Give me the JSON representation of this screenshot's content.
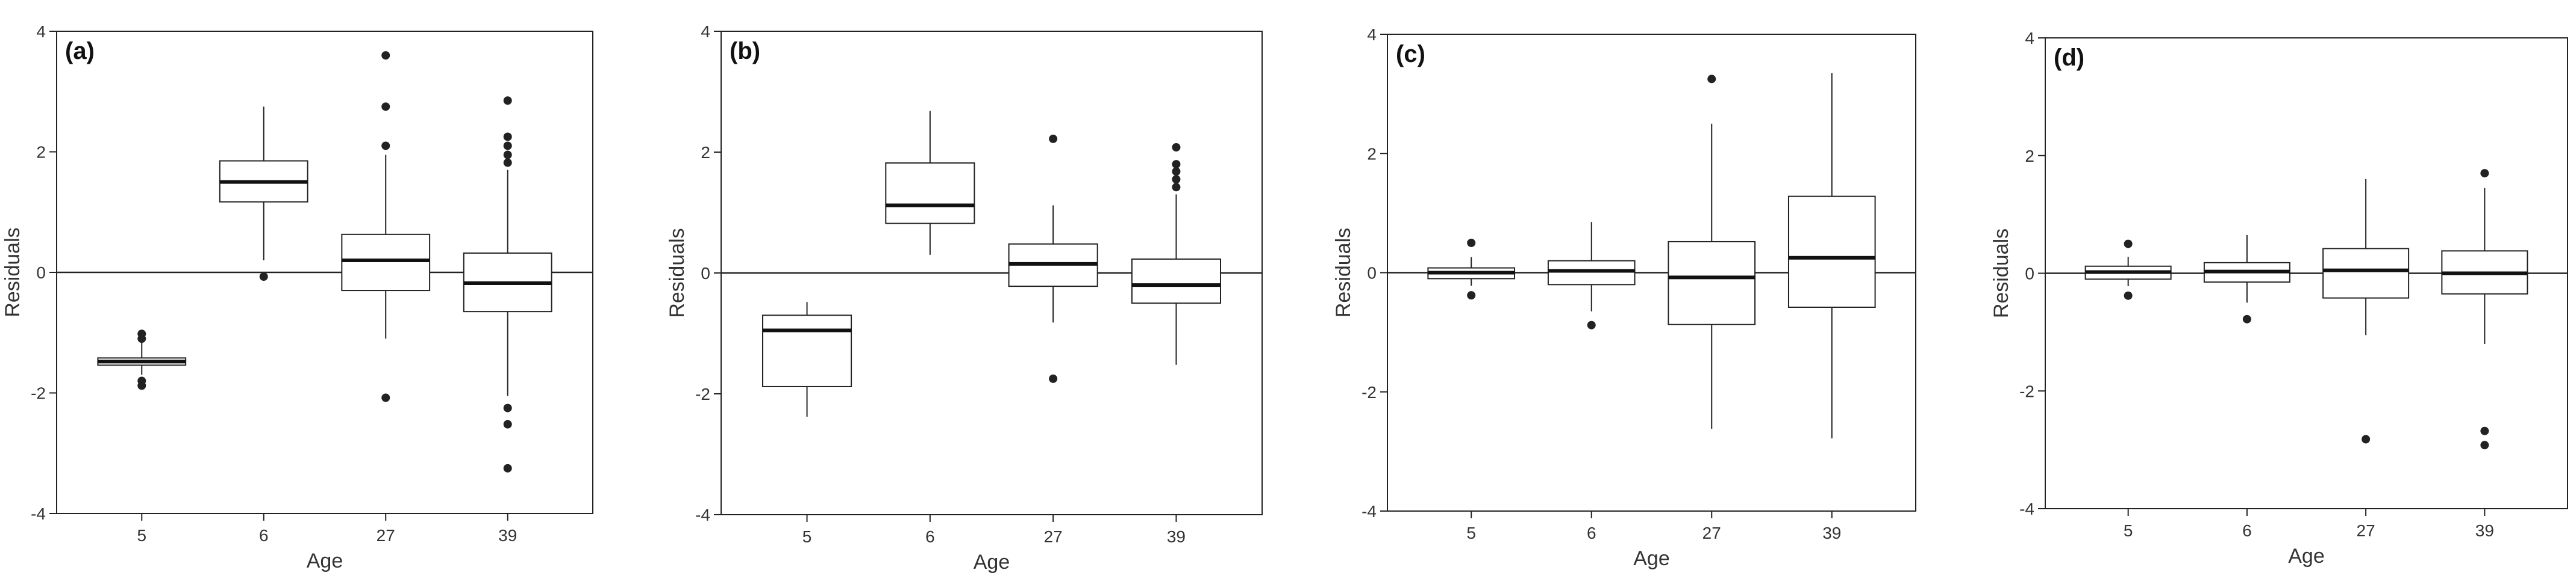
{
  "figure": {
    "background": "#ffffff",
    "box_color": "#222222",
    "median_color": "#111111",
    "outlier_color": "#222222"
  },
  "chart_data": [
    {
      "type": "boxplot",
      "panel_label": "(a)",
      "xlabel": "Age",
      "ylabel": "Residuals",
      "categories": [
        "5",
        "6",
        "27",
        "39"
      ],
      "ylim": [
        -4,
        4
      ],
      "yticks": [
        -4,
        -2,
        0,
        2,
        4
      ],
      "reference_line": 0,
      "boxes": [
        {
          "q1": -1.54,
          "median": -1.48,
          "q3": -1.42,
          "whisker_low": -1.7,
          "whisker_high": -1.12,
          "outliers": [
            -1.02,
            -1.1,
            -1.8,
            -1.88
          ]
        },
        {
          "q1": 1.17,
          "median": 1.5,
          "q3": 1.85,
          "whisker_low": 0.2,
          "whisker_high": 2.75,
          "outliers": [
            -0.07
          ]
        },
        {
          "q1": -0.3,
          "median": 0.2,
          "q3": 0.63,
          "whisker_low": -1.1,
          "whisker_high": 1.95,
          "outliers": [
            2.1,
            2.75,
            3.6,
            -2.08
          ]
        },
        {
          "q1": -0.65,
          "median": -0.18,
          "q3": 0.32,
          "whisker_low": -2.05,
          "whisker_high": 1.7,
          "outliers": [
            1.82,
            1.95,
            2.1,
            2.25,
            2.85,
            -2.25,
            -2.52,
            -3.25
          ]
        }
      ]
    },
    {
      "type": "boxplot",
      "panel_label": "(b)",
      "xlabel": "Age",
      "ylabel": "Residuals",
      "categories": [
        "5",
        "6",
        "27",
        "39"
      ],
      "ylim": [
        -4,
        4
      ],
      "yticks": [
        -4,
        -2,
        0,
        2,
        4
      ],
      "reference_line": 0,
      "boxes": [
        {
          "q1": -1.88,
          "median": -0.95,
          "q3": -0.7,
          "whisker_low": -2.38,
          "whisker_high": -0.48,
          "outliers": []
        },
        {
          "q1": 0.82,
          "median": 1.12,
          "q3": 1.82,
          "whisker_low": 0.3,
          "whisker_high": 2.68,
          "outliers": []
        },
        {
          "q1": -0.22,
          "median": 0.15,
          "q3": 0.48,
          "whisker_low": -0.82,
          "whisker_high": 1.12,
          "outliers": [
            2.22,
            -1.75
          ]
        },
        {
          "q1": -0.5,
          "median": -0.2,
          "q3": 0.23,
          "whisker_low": -1.52,
          "whisker_high": 1.3,
          "outliers": [
            1.42,
            1.55,
            1.68,
            1.8,
            2.08
          ]
        }
      ]
    },
    {
      "type": "boxplot",
      "panel_label": "(c)",
      "xlabel": "Age",
      "ylabel": "Residuals",
      "categories": [
        "5",
        "6",
        "27",
        "39"
      ],
      "ylim": [
        -4,
        4
      ],
      "yticks": [
        -4,
        -2,
        0,
        2,
        4
      ],
      "reference_line": 0,
      "boxes": [
        {
          "q1": -0.1,
          "median": 0,
          "q3": 0.08,
          "whisker_low": -0.22,
          "whisker_high": 0.26,
          "outliers": [
            0.5,
            -0.38
          ]
        },
        {
          "q1": -0.2,
          "median": 0.03,
          "q3": 0.2,
          "whisker_low": -0.65,
          "whisker_high": 0.85,
          "outliers": [
            -0.88
          ]
        },
        {
          "q1": -0.87,
          "median": -0.08,
          "q3": 0.52,
          "whisker_low": -2.62,
          "whisker_high": 2.5,
          "outliers": [
            3.25
          ]
        },
        {
          "q1": -0.58,
          "median": 0.25,
          "q3": 1.28,
          "whisker_low": -2.78,
          "whisker_high": 3.35,
          "outliers": []
        }
      ]
    },
    {
      "type": "boxplot",
      "panel_label": "(d)",
      "xlabel": "Age",
      "ylabel": "Residuals",
      "categories": [
        "5",
        "6",
        "27",
        "39"
      ],
      "ylim": [
        -4,
        4
      ],
      "yticks": [
        -4,
        -2,
        0,
        2,
        4
      ],
      "reference_line": 0,
      "boxes": [
        {
          "q1": -0.1,
          "median": 0.02,
          "q3": 0.12,
          "whisker_low": -0.22,
          "whisker_high": 0.28,
          "outliers": [
            0.5,
            -0.38
          ]
        },
        {
          "q1": -0.15,
          "median": 0.03,
          "q3": 0.18,
          "whisker_low": -0.5,
          "whisker_high": 0.65,
          "outliers": [
            -0.78
          ]
        },
        {
          "q1": -0.42,
          "median": 0.05,
          "q3": 0.42,
          "whisker_low": -1.05,
          "whisker_high": 1.6,
          "outliers": [
            -2.82
          ]
        },
        {
          "q1": -0.35,
          "median": 0,
          "q3": 0.38,
          "whisker_low": -1.2,
          "whisker_high": 1.45,
          "outliers": [
            1.7,
            -2.68,
            -2.92
          ]
        }
      ]
    }
  ]
}
